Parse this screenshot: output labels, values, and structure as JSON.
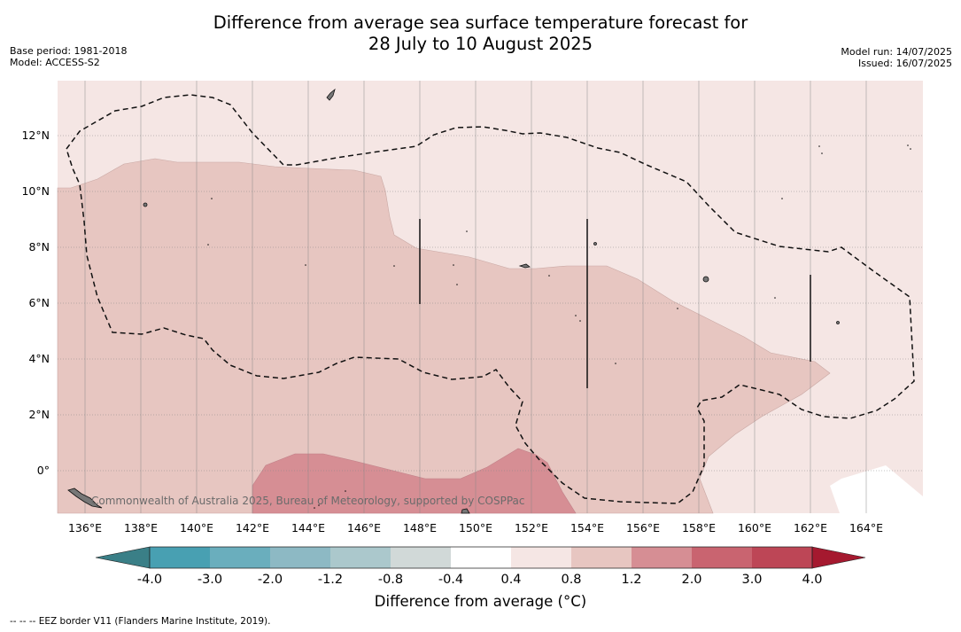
{
  "title_line1": "Difference from average sea surface temperature forecast for",
  "title_line2": "28 July to 10 August 2025",
  "meta_left": {
    "base_period": "Base period: 1981-2018",
    "model": "Model: ACCESS-S2"
  },
  "meta_right": {
    "model_run": "Model run: 14/07/2025",
    "issued": "Issued: 16/07/2025"
  },
  "copyright": "Commonwealth of Australia 2025, Bureau of Meteorology, supported by COSPPac",
  "lon_labels": [
    "136°E",
    "138°E",
    "140°E",
    "142°E",
    "144°E",
    "146°E",
    "148°E",
    "150°E",
    "152°E",
    "154°E",
    "156°E",
    "158°E",
    "160°E",
    "162°E",
    "164°E"
  ],
  "lat_labels": [
    "12°N",
    "10°N",
    "8°N",
    "6°N",
    "4°N",
    "2°N",
    "0°"
  ],
  "colorbar": {
    "ticks": [
      "-4.0",
      "-3.0",
      "-2.0",
      "-1.2",
      "-0.8",
      "-0.4",
      "0.4",
      "0.8",
      "1.2",
      "2.0",
      "3.0",
      "4.0"
    ],
    "colors": [
      "#3a7f87",
      "#48a0b2",
      "#6aaebd",
      "#8db9c4",
      "#abc8cc",
      "#d1d9d8",
      "#ffffff",
      "#f5e6e4",
      "#e7c6c1",
      "#d68e94",
      "#c96470",
      "#bd4656",
      "#a5192f"
    ],
    "title": "Difference from average (°C)"
  },
  "footnote": "--  --  -- EEZ border V11 (Flanders Marine Institute, 2019).",
  "map_colors": {
    "light": "#f5e6e4",
    "mid": "#e7c6c1",
    "strong": "#d68e94",
    "white": "#ffffff"
  }
}
